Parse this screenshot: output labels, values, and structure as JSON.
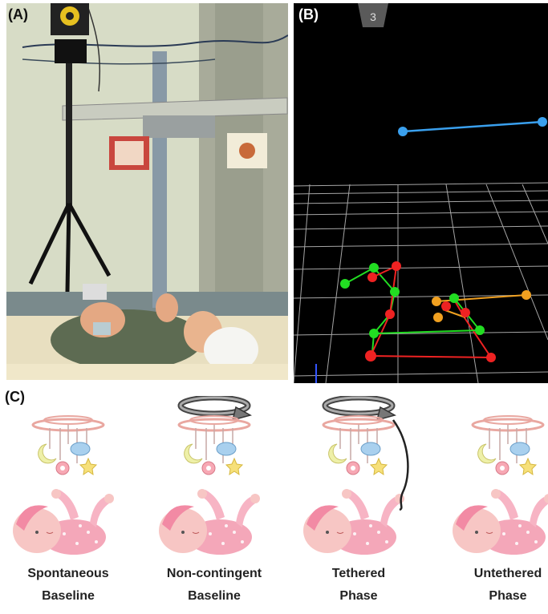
{
  "panels": {
    "a": {
      "label": "(A)"
    },
    "b": {
      "label": "(B)",
      "view_badge": "3"
    },
    "c": {
      "label": "(C)"
    }
  },
  "phases": [
    {
      "line1": "Spontaneous",
      "line2": "Baseline",
      "mobile_spinning": false,
      "tethered": false
    },
    {
      "line1": "Non-contingent",
      "line2": "Baseline",
      "mobile_spinning": true,
      "tethered": false
    },
    {
      "line1": "Tethered",
      "line2": "Phase",
      "mobile_spinning": true,
      "tethered": true
    },
    {
      "line1": "Untethered",
      "line2": "Phase",
      "mobile_spinning": false,
      "tethered": false
    }
  ],
  "colors": {
    "marker_green": "#22dd22",
    "marker_red": "#ee2222",
    "marker_orange": "#f0a020",
    "mobile_marker_blue": "#3aa0ee",
    "grid": "#ffffff",
    "baby_pink": "#f7b4c4"
  }
}
